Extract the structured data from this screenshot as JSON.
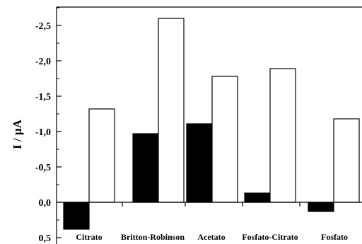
{
  "chart_data": {
    "type": "bar",
    "title": "",
    "xlabel": "",
    "ylabel": "I / µA",
    "categories": [
      "Citrato",
      "Britton-Robinson",
      "Acetato",
      "Fosfato-Citrato",
      "Fosfato"
    ],
    "series": [
      {
        "color": "#000000",
        "values": [
          0.38,
          -0.97,
          -1.11,
          -0.13,
          0.13
        ]
      },
      {
        "color": "#ffffff",
        "values": [
          -1.32,
          -2.6,
          -1.78,
          -1.89,
          -1.18
        ]
      }
    ],
    "ylim": [
      0.55,
      -2.7
    ],
    "y_ticks": [
      0.5,
      0.0,
      -0.5,
      -1.0,
      -1.5,
      -2.0,
      -2.5
    ],
    "y_tick_labels": [
      "0,5",
      "0,0",
      "-0,5",
      "-1,0",
      "-1,5",
      "-2,0",
      "-2,5"
    ],
    "grid": false,
    "legend": "none"
  }
}
